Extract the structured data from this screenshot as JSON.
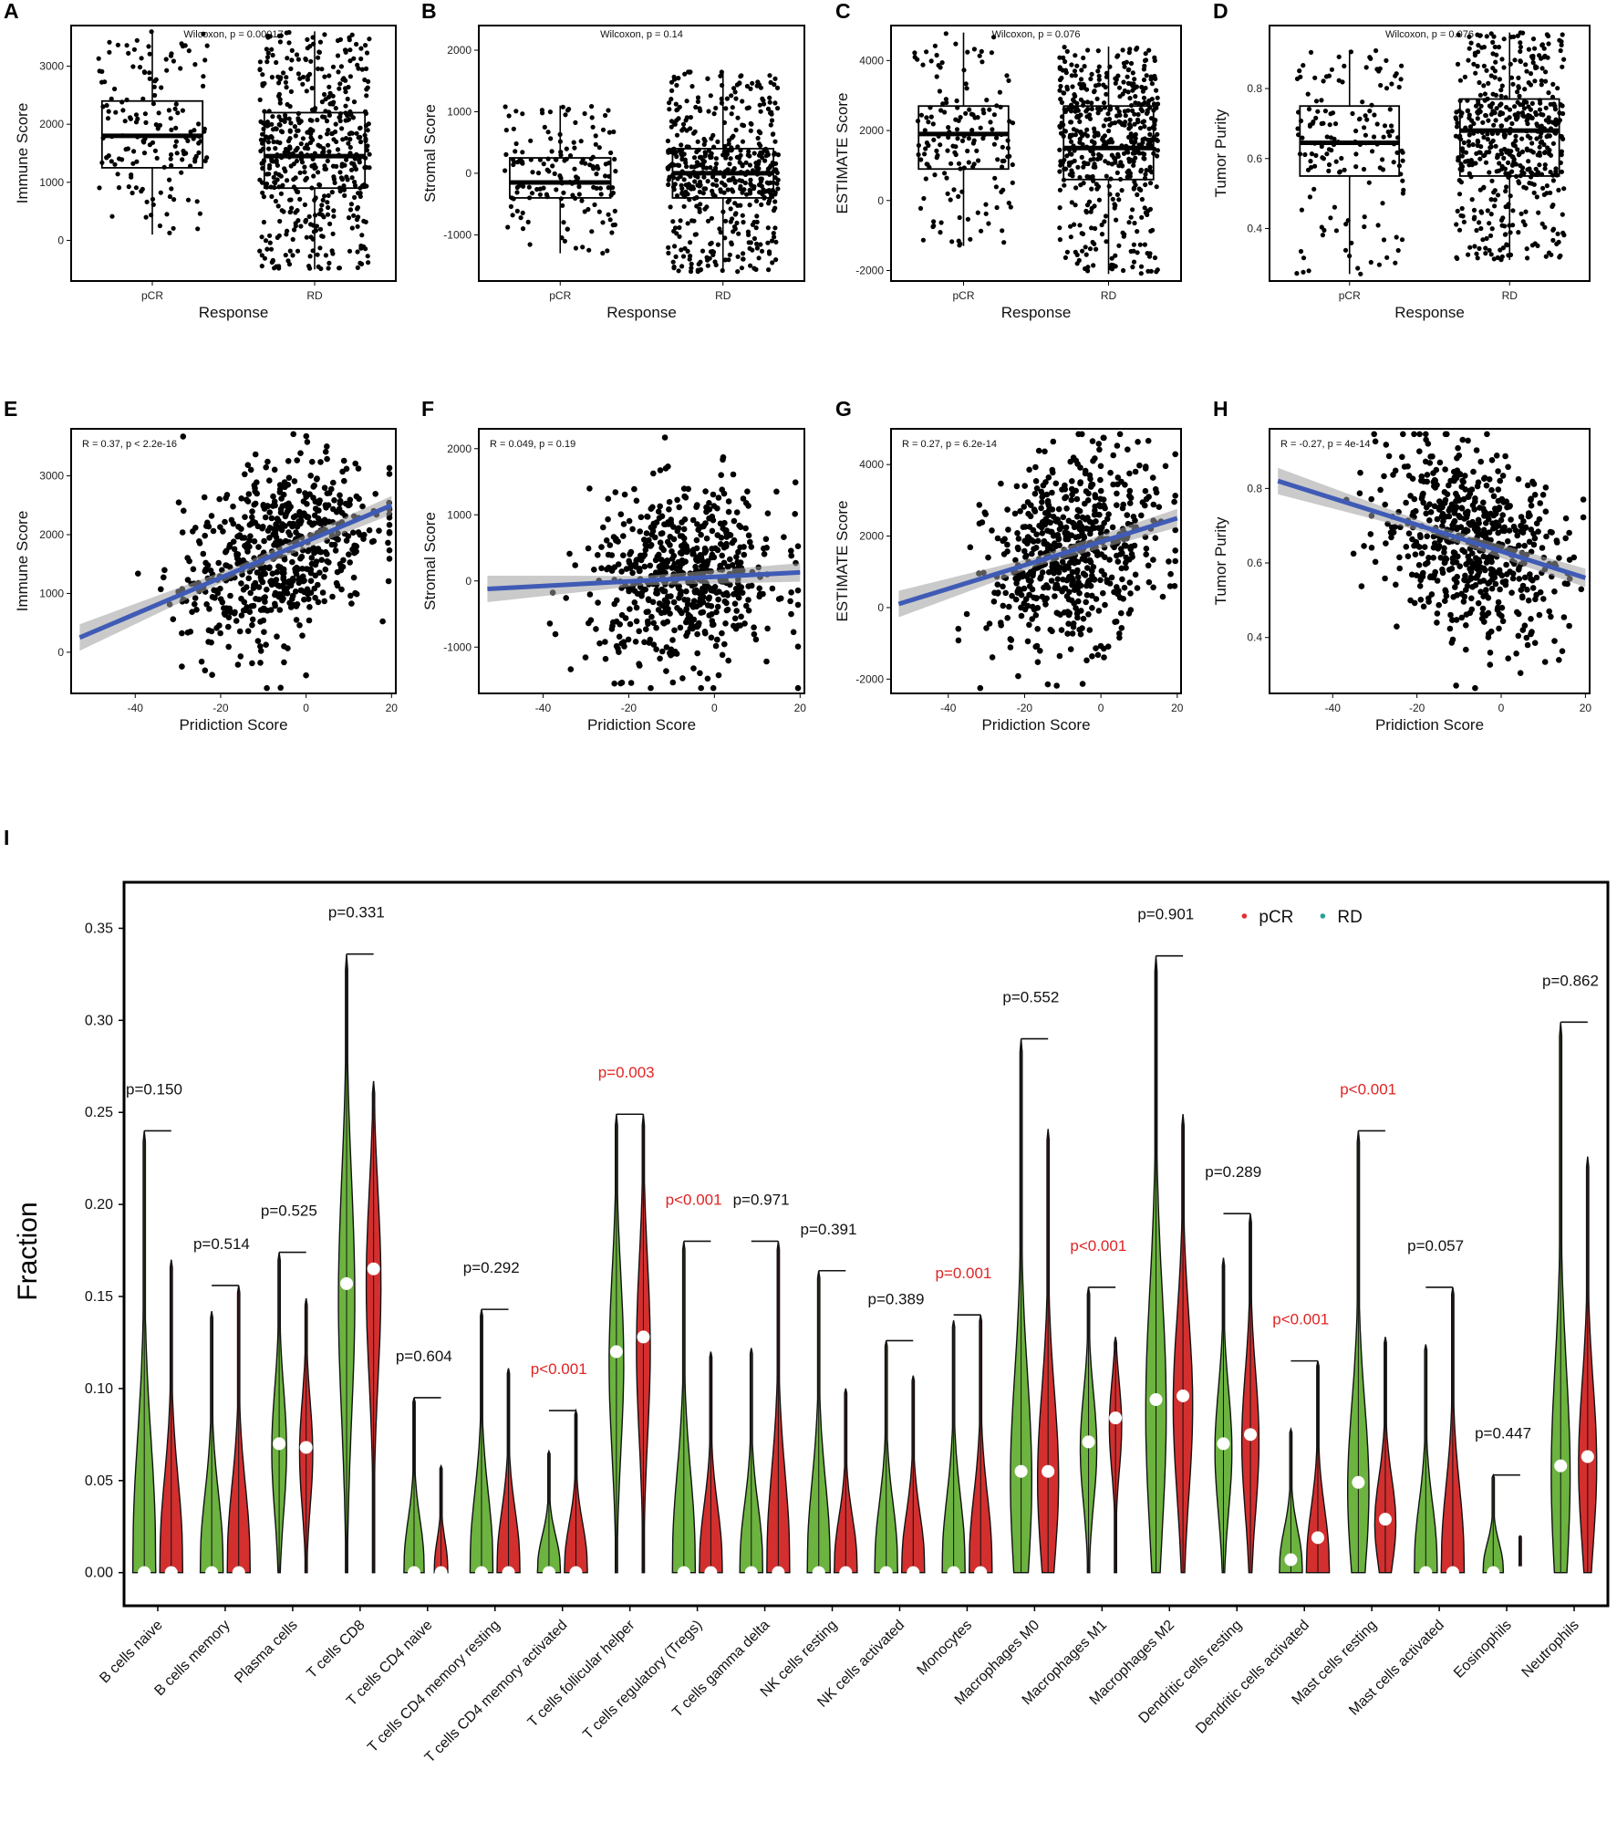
{
  "figure": {
    "panel_letters": [
      "A",
      "B",
      "C",
      "D",
      "E",
      "F",
      "G",
      "H",
      "I"
    ]
  },
  "chart_data": [
    {
      "id": "A",
      "type": "box",
      "xlabel": "Response",
      "ylabel": "Immune Score",
      "annotation": "Wilcoxon, p = 0.00017",
      "categories": [
        "pCR",
        "RD"
      ],
      "ylim": [
        -700,
        3700
      ],
      "yticks": [
        0,
        1000,
        2000,
        3000
      ],
      "boxes": [
        {
          "min": 100,
          "q1": 1250,
          "median": 1800,
          "q3": 2400,
          "max": 3600
        },
        {
          "min": -500,
          "q1": 900,
          "median": 1450,
          "q3": 2200,
          "max": 3600
        }
      ],
      "n_points": [
        160,
        520
      ]
    },
    {
      "id": "B",
      "type": "box",
      "xlabel": "Response",
      "ylabel": "Stromal Score",
      "annotation": "Wilcoxon, p = 0.14",
      "categories": [
        "pCR",
        "RD"
      ],
      "ylim": [
        -1750,
        2400
      ],
      "yticks": [
        -1000,
        0,
        1000,
        2000
      ],
      "boxes": [
        {
          "min": -1300,
          "q1": -400,
          "median": -150,
          "q3": 250,
          "max": 1100
        },
        {
          "min": -1600,
          "q1": -400,
          "median": 0,
          "q3": 400,
          "max": 1650
        }
      ],
      "n_points": [
        160,
        520
      ]
    },
    {
      "id": "C",
      "type": "box",
      "xlabel": "Response",
      "ylabel": "ESTIMATE Score",
      "annotation": "Wilcoxon, p = 0.076",
      "categories": [
        "pCR",
        "RD"
      ],
      "ylim": [
        -2300,
        5000
      ],
      "yticks": [
        -2000,
        0,
        2000,
        4000
      ],
      "boxes": [
        {
          "min": -1300,
          "q1": 900,
          "median": 1900,
          "q3": 2700,
          "max": 4800
        },
        {
          "min": -2100,
          "q1": 600,
          "median": 1500,
          "q3": 2700,
          "max": 4400
        }
      ],
      "n_points": [
        160,
        520
      ]
    },
    {
      "id": "D",
      "type": "box",
      "xlabel": "Response",
      "ylabel": "Tumor Purity",
      "annotation": "Wilcoxon, p = 0.076",
      "categories": [
        "pCR",
        "RD"
      ],
      "ylim": [
        0.25,
        0.98
      ],
      "yticks": [
        0.4,
        0.6,
        0.8
      ],
      "boxes": [
        {
          "min": 0.27,
          "q1": 0.55,
          "median": 0.645,
          "q3": 0.75,
          "max": 0.91
        },
        {
          "min": 0.31,
          "q1": 0.55,
          "median": 0.68,
          "q3": 0.77,
          "max": 0.96
        }
      ],
      "n_points": [
        160,
        520
      ]
    },
    {
      "id": "E",
      "type": "scatter",
      "xlabel": "Pridiction Score",
      "ylabel": "Immune Score",
      "annotation": "R = 0.37, p < 2.2e-16",
      "xlim": [
        -55,
        21
      ],
      "xticks": [
        -40,
        -20,
        0,
        20
      ],
      "ylim": [
        -700,
        3800
      ],
      "yticks": [
        0,
        1000,
        2000,
        3000
      ],
      "fit": {
        "x0": -53,
        "y0": 250,
        "x1": 20,
        "y1": 2500
      },
      "cloud": {
        "cx": -7,
        "cy": 1600,
        "sx": 11,
        "sy": 750
      }
    },
    {
      "id": "F",
      "type": "scatter",
      "xlabel": "Pridiction Score",
      "ylabel": "Stromal Score",
      "annotation": "R = 0.049, p = 0.19",
      "xlim": [
        -55,
        21
      ],
      "xticks": [
        -40,
        -20,
        0,
        20
      ],
      "ylim": [
        -1700,
        2300
      ],
      "yticks": [
        -1000,
        0,
        1000,
        2000
      ],
      "fit": {
        "x0": -53,
        "y0": -120,
        "x1": 20,
        "y1": 130
      },
      "cloud": {
        "cx": -7,
        "cy": 0,
        "sx": 11,
        "sy": 650
      }
    },
    {
      "id": "G",
      "type": "scatter",
      "xlabel": "Pridiction Score",
      "ylabel": "ESTIMATE Score",
      "annotation": "R = 0.27, p = 6.2e-14",
      "xlim": [
        -55,
        21
      ],
      "xticks": [
        -40,
        -20,
        0,
        20
      ],
      "ylim": [
        -2400,
        5000
      ],
      "yticks": [
        -2000,
        0,
        2000,
        4000
      ],
      "fit": {
        "x0": -53,
        "y0": 100,
        "x1": 20,
        "y1": 2500
      },
      "cloud": {
        "cx": -7,
        "cy": 1600,
        "sx": 11,
        "sy": 1300
      }
    },
    {
      "id": "H",
      "type": "scatter",
      "xlabel": "Pridiction Score",
      "ylabel": "Tumor Purity",
      "annotation": "R = -0.27, p = 4e-14",
      "xlim": [
        -55,
        21
      ],
      "xticks": [
        -40,
        -20,
        0,
        20
      ],
      "ylim": [
        0.25,
        0.96
      ],
      "yticks": [
        0.4,
        0.6,
        0.8
      ],
      "fit": {
        "x0": -53,
        "y0": 0.82,
        "x1": 20,
        "y1": 0.56
      },
      "cloud": {
        "cx": -7,
        "cy": 0.65,
        "sx": 11,
        "sy": 0.12
      }
    },
    {
      "id": "I",
      "type": "violin",
      "ylabel": "Fraction",
      "ylim": [
        -0.018,
        0.375
      ],
      "yticks": [
        "0.00",
        "0.05",
        "0.10",
        "0.15",
        "0.20",
        "0.25",
        "0.30",
        "0.35"
      ],
      "legend": [
        {
          "name": "pCR",
          "color": "#e03131"
        },
        {
          "name": "RD",
          "color": "#2aa198"
        }
      ],
      "fill_colors": {
        "first": "#6cb33f",
        "second": "#d32f2f"
      },
      "categories": [
        {
          "name": "B cells naive",
          "p": "p=0.150",
          "sig": false,
          "mx1": 0.24,
          "mx2": 0.17,
          "med1": 0.0,
          "med2": 0.0,
          "w1": 0.34,
          "w2": 0.34
        },
        {
          "name": "B cells memory",
          "p": "p=0.514",
          "sig": false,
          "mx1": 0.142,
          "mx2": 0.156,
          "med1": 0.0,
          "med2": 0.0,
          "w1": 0.34,
          "w2": 0.34
        },
        {
          "name": "Plasma cells",
          "p": "p=0.525",
          "sig": false,
          "mx1": 0.174,
          "mx2": 0.149,
          "med1": 0.07,
          "med2": 0.068,
          "w1": 0.26,
          "w2": 0.24
        },
        {
          "name": "T cells CD8",
          "p": "p=0.331",
          "sig": false,
          "mx1": 0.336,
          "mx2": 0.267,
          "med1": 0.157,
          "med2": 0.165,
          "w1": 0.3,
          "w2": 0.3
        },
        {
          "name": "T cells CD4 naive",
          "p": "p=0.604",
          "sig": false,
          "mx1": 0.095,
          "mx2": 0.058,
          "med1": 0.0,
          "med2": 0.0,
          "w1": 0.3,
          "w2": 0.2
        },
        {
          "name": "T cells CD4 memory resting",
          "p": "p=0.292",
          "sig": false,
          "mx1": 0.143,
          "mx2": 0.111,
          "med1": 0.0,
          "med2": 0.0,
          "w1": 0.34,
          "w2": 0.34
        },
        {
          "name": "T cells CD4 memory activated",
          "p": "p<0.001",
          "sig": true,
          "mx1": 0.066,
          "mx2": 0.088,
          "med1": 0.0,
          "med2": 0.0,
          "w1": 0.34,
          "w2": 0.34
        },
        {
          "name": "T cells follicular helper",
          "p": "p=0.003",
          "sig": true,
          "mx1": 0.249,
          "mx2": 0.249,
          "med1": 0.12,
          "med2": 0.128,
          "w1": 0.27,
          "w2": 0.26
        },
        {
          "name": "T cells regulatory (Tregs)",
          "p": "p<0.001",
          "sig": true,
          "mx1": 0.18,
          "mx2": 0.12,
          "med1": 0.0,
          "med2": 0.0,
          "w1": 0.34,
          "w2": 0.34
        },
        {
          "name": "T cells gamma delta",
          "p": "p=0.971",
          "sig": false,
          "mx1": 0.122,
          "mx2": 0.18,
          "med1": 0.0,
          "med2": 0.0,
          "w1": 0.34,
          "w2": 0.34
        },
        {
          "name": "NK cells resting",
          "p": "p=0.391",
          "sig": false,
          "mx1": 0.164,
          "mx2": 0.1,
          "med1": 0.0,
          "med2": 0.0,
          "w1": 0.34,
          "w2": 0.34
        },
        {
          "name": "NK cells activated",
          "p": "p=0.389",
          "sig": false,
          "mx1": 0.126,
          "mx2": 0.107,
          "med1": 0.0,
          "med2": 0.0,
          "w1": 0.34,
          "w2": 0.34
        },
        {
          "name": "Monocytes",
          "p": "p=0.001",
          "sig": true,
          "mx1": 0.137,
          "mx2": 0.14,
          "med1": 0.0,
          "med2": 0.0,
          "w1": 0.34,
          "w2": 0.34
        },
        {
          "name": "Macrophages M0",
          "p": "p=0.552",
          "sig": false,
          "mx1": 0.29,
          "mx2": 0.241,
          "med1": 0.055,
          "med2": 0.055,
          "w1": 0.34,
          "w2": 0.34
        },
        {
          "name": "Macrophages M1",
          "p": "p<0.001",
          "sig": true,
          "mx1": 0.155,
          "mx2": 0.128,
          "med1": 0.071,
          "med2": 0.084,
          "w1": 0.3,
          "w2": 0.26
        },
        {
          "name": "Macrophages M2",
          "p": "p=0.901",
          "sig": false,
          "mx1": 0.335,
          "mx2": 0.249,
          "med1": 0.094,
          "med2": 0.096,
          "w1": 0.34,
          "w2": 0.34
        },
        {
          "name": "Dendritic cells resting",
          "p": "p=0.289",
          "sig": false,
          "mx1": 0.171,
          "mx2": 0.195,
          "med1": 0.07,
          "med2": 0.075,
          "w1": 0.3,
          "w2": 0.3
        },
        {
          "name": "Dendritic cells activated",
          "p": "p<0.001",
          "sig": true,
          "mx1": 0.078,
          "mx2": 0.115,
          "med1": 0.007,
          "med2": 0.019,
          "w1": 0.34,
          "w2": 0.34
        },
        {
          "name": "Mast cells resting",
          "p": "p<0.001",
          "sig": true,
          "mx1": 0.24,
          "mx2": 0.128,
          "med1": 0.049,
          "med2": 0.029,
          "w1": 0.34,
          "w2": 0.34
        },
        {
          "name": "Mast cells activated",
          "p": "p=0.057",
          "sig": false,
          "mx1": 0.124,
          "mx2": 0.155,
          "med1": 0.0,
          "med2": 0.0,
          "w1": 0.34,
          "w2": 0.34
        },
        {
          "name": "Eosinophils",
          "p": "p=0.447",
          "sig": false,
          "mx1": 0.053,
          "mx2": 0.02,
          "med1": 0.0,
          "med2": 0.0,
          "w1": 0.3,
          "w2": 0.04
        },
        {
          "name": "Neutrophils",
          "p": "p=0.862",
          "sig": false,
          "mx1": 0.299,
          "mx2": 0.226,
          "med1": 0.058,
          "med2": 0.063,
          "w1": 0.3,
          "w2": 0.3
        }
      ]
    }
  ]
}
